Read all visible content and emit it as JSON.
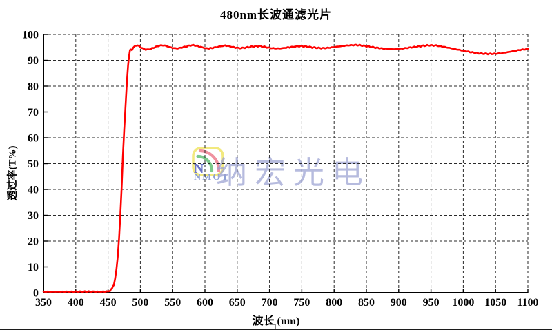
{
  "title": "480nm长波通滤光片",
  "watermark": {
    "logo_text": "NMOT",
    "text": "纳宏光电",
    "colors": {
      "box": "#f2e97e",
      "arc_outer": "#ef92a0",
      "arc_inner": "#7cc98b",
      "letter_n": "#6a73c6",
      "nmot_text": "#8d9fd3",
      "big_text": "#9ba1d2"
    }
  },
  "colors": {
    "curve": "#ff0000",
    "grid": "#2a2a2a",
    "axis": "#000000",
    "background": "#ffffff",
    "border_line": "#1c1c1c"
  },
  "chart_data": {
    "type": "line",
    "title": "480nm长波通滤光片",
    "xlabel": "波长 (nm)",
    "ylabel": "透过率(T%)",
    "xlim": [
      350,
      1100
    ],
    "ylim": [
      0,
      100
    ],
    "x_ticks": [
      350,
      400,
      450,
      500,
      550,
      600,
      650,
      700,
      750,
      800,
      850,
      900,
      950,
      1000,
      1050,
      1100
    ],
    "y_ticks": [
      0,
      10,
      20,
      30,
      40,
      50,
      60,
      70,
      80,
      90,
      100
    ],
    "grid": "dashed",
    "legend": "none",
    "noise_amplitude": 0.13,
    "series": [
      {
        "name": "transmittance",
        "points": [
          [
            350,
            0.4
          ],
          [
            370,
            0.4
          ],
          [
            390,
            0.4
          ],
          [
            410,
            0.4
          ],
          [
            430,
            0.4
          ],
          [
            445,
            0.4
          ],
          [
            450,
            0.5
          ],
          [
            453,
            0.8
          ],
          [
            456,
            1.6
          ],
          [
            459,
            3.2
          ],
          [
            461,
            5.5
          ],
          [
            463,
            9
          ],
          [
            465,
            14
          ],
          [
            467,
            21
          ],
          [
            469,
            30
          ],
          [
            471,
            41
          ],
          [
            473,
            53
          ],
          [
            475,
            63
          ],
          [
            477,
            72
          ],
          [
            479,
            81
          ],
          [
            481,
            88
          ],
          [
            482.5,
            91.5
          ],
          [
            484,
            93.8
          ],
          [
            485.5,
            94.3
          ],
          [
            487,
            94.0
          ],
          [
            489,
            94.8
          ],
          [
            491,
            95.4
          ],
          [
            494,
            95.8
          ],
          [
            497,
            95.6
          ],
          [
            500,
            95.1
          ],
          [
            505,
            94.4
          ],
          [
            510,
            94.1
          ],
          [
            515,
            94.3
          ],
          [
            520,
            94.8
          ],
          [
            526,
            95.4
          ],
          [
            532,
            95.8
          ],
          [
            538,
            95.7
          ],
          [
            544,
            95.2
          ],
          [
            550,
            94.8
          ],
          [
            556,
            94.6
          ],
          [
            562,
            94.8
          ],
          [
            570,
            95.3
          ],
          [
            578,
            95.8
          ],
          [
            584,
            95.8
          ],
          [
            590,
            95.4
          ],
          [
            597,
            94.9
          ],
          [
            603,
            94.6
          ],
          [
            610,
            94.7
          ],
          [
            618,
            95.1
          ],
          [
            626,
            95.5
          ],
          [
            633,
            95.7
          ],
          [
            640,
            95.3
          ],
          [
            647,
            94.9
          ],
          [
            654,
            94.7
          ],
          [
            660,
            94.8
          ],
          [
            668,
            95.1
          ],
          [
            676,
            95.4
          ],
          [
            684,
            95.5
          ],
          [
            692,
            95.2
          ],
          [
            700,
            94.8
          ],
          [
            708,
            94.6
          ],
          [
            716,
            94.6
          ],
          [
            724,
            94.8
          ],
          [
            733,
            95.1
          ],
          [
            742,
            95.4
          ],
          [
            750,
            95.5
          ],
          [
            758,
            95.3
          ],
          [
            766,
            95.0
          ],
          [
            774,
            94.8
          ],
          [
            782,
            94.7
          ],
          [
            790,
            94.8
          ],
          [
            800,
            95.1
          ],
          [
            812,
            95.5
          ],
          [
            824,
            95.8
          ],
          [
            834,
            95.9
          ],
          [
            844,
            95.7
          ],
          [
            854,
            95.3
          ],
          [
            864,
            94.9
          ],
          [
            874,
            94.6
          ],
          [
            884,
            94.4
          ],
          [
            894,
            94.3
          ],
          [
            904,
            94.5
          ],
          [
            914,
            94.8
          ],
          [
            926,
            95.2
          ],
          [
            938,
            95.6
          ],
          [
            948,
            95.8
          ],
          [
            958,
            95.7
          ],
          [
            968,
            95.3
          ],
          [
            978,
            94.8
          ],
          [
            988,
            94.3
          ],
          [
            998,
            93.8
          ],
          [
            1008,
            93.3
          ],
          [
            1018,
            92.9
          ],
          [
            1028,
            92.6
          ],
          [
            1038,
            92.5
          ],
          [
            1048,
            92.5
          ],
          [
            1058,
            92.7
          ],
          [
            1068,
            93.1
          ],
          [
            1078,
            93.6
          ],
          [
            1088,
            94.0
          ],
          [
            1100,
            94.4
          ]
        ]
      }
    ]
  }
}
